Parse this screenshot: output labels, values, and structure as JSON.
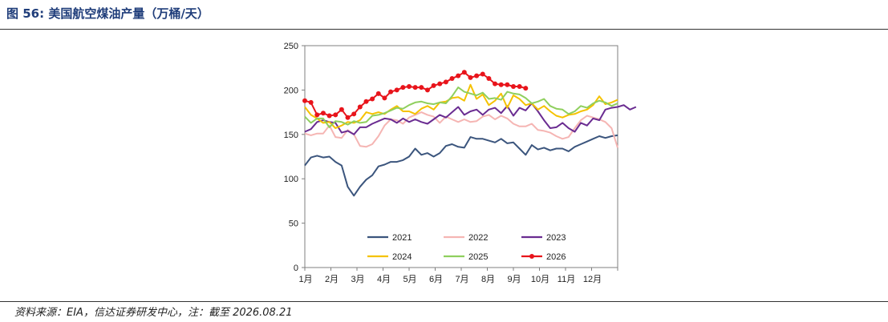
{
  "figure": {
    "title": "图 56:  美国航空煤油产量（万桶/天）",
    "source": "资料来源：EIA，信达证券研发中心，注：截至 2026.08.21"
  },
  "chart_data": {
    "type": "line",
    "title": "",
    "xlabel": "",
    "ylabel": "",
    "ylim": [
      0,
      250
    ],
    "yticks": [
      "0",
      "50",
      "100",
      "150",
      "200",
      "250"
    ],
    "xticks": [
      "1月",
      "2月",
      "3月",
      "4月",
      "5月",
      "6月",
      "7月",
      "8月",
      "9月",
      "10月",
      "11月",
      "12月"
    ],
    "x_unit": "week of year",
    "grid": false,
    "legend_position": "bottom-inside",
    "series": [
      {
        "name": "2021",
        "color": "#3b557d",
        "marker": false,
        "values": [
          115,
          124,
          126,
          124,
          125,
          119,
          115,
          91,
          81,
          91,
          99,
          104,
          114,
          116,
          119,
          119,
          121,
          125,
          134,
          127,
          129,
          125,
          129,
          137,
          139,
          136,
          135,
          147,
          145,
          145,
          143,
          141,
          145,
          140,
          141,
          134,
          127,
          138,
          133,
          135,
          132,
          134,
          134,
          131,
          136,
          139,
          142,
          145,
          148,
          146,
          148,
          149
        ]
      },
      {
        "name": "2022",
        "color": "#f5b5b3",
        "marker": false,
        "values": [
          151,
          149,
          151,
          151,
          160,
          147,
          146,
          155,
          150,
          137,
          136,
          139,
          148,
          160,
          167,
          166,
          162,
          169,
          172,
          175,
          172,
          170,
          163,
          170,
          167,
          164,
          167,
          164,
          165,
          170,
          172,
          167,
          171,
          168,
          162,
          159,
          159,
          162,
          155,
          154,
          152,
          148,
          145,
          147,
          157,
          166,
          171,
          169,
          167,
          164,
          157,
          135
        ]
      },
      {
        "name": "2023",
        "color": "#6a2c91",
        "marker": false,
        "values": [
          153,
          156,
          164,
          166,
          164,
          163,
          152,
          154,
          150,
          158,
          158,
          162,
          165,
          168,
          167,
          163,
          168,
          164,
          167,
          164,
          162,
          167,
          172,
          169,
          175,
          181,
          172,
          176,
          178,
          172,
          178,
          180,
          174,
          182,
          171,
          180,
          177,
          185,
          176,
          166,
          157,
          158,
          163,
          157,
          153,
          163,
          160,
          168,
          166,
          178,
          180,
          181,
          183,
          178,
          181
        ]
      },
      {
        "name": "2024",
        "color": "#f5c200",
        "marker": false,
        "values": [
          181,
          172,
          168,
          163,
          164,
          157,
          160,
          164,
          163,
          166,
          175,
          173,
          175,
          173,
          178,
          182,
          176,
          176,
          173,
          179,
          182,
          178,
          186,
          187,
          191,
          192,
          188,
          206,
          190,
          195,
          183,
          188,
          196,
          180,
          194,
          190,
          183,
          185,
          178,
          182,
          176,
          171,
          169,
          172,
          173,
          176,
          178,
          183,
          193,
          184,
          186,
          189
        ]
      },
      {
        "name": "2025",
        "color": "#8fcf5e",
        "marker": false,
        "values": [
          170,
          163,
          168,
          168,
          158,
          165,
          164,
          161,
          165,
          163,
          164,
          171,
          172,
          174,
          177,
          180,
          179,
          183,
          186,
          187,
          185,
          184,
          186,
          185,
          193,
          203,
          198,
          196,
          194,
          197,
          190,
          191,
          189,
          198,
          196,
          195,
          191,
          185,
          187,
          190,
          182,
          179,
          178,
          173,
          176,
          182,
          180,
          185,
          188,
          186,
          182,
          185
        ]
      },
      {
        "name": "2026",
        "color": "#e8141b",
        "marker": true,
        "values": [
          188,
          186,
          172,
          174,
          171,
          172,
          178,
          169,
          173,
          181,
          187,
          190,
          196,
          191,
          198,
          200,
          203,
          204,
          203,
          203,
          200,
          205,
          207,
          209,
          213,
          216,
          220,
          214,
          216,
          218,
          213,
          207,
          206,
          206,
          204,
          204,
          202
        ]
      }
    ]
  }
}
